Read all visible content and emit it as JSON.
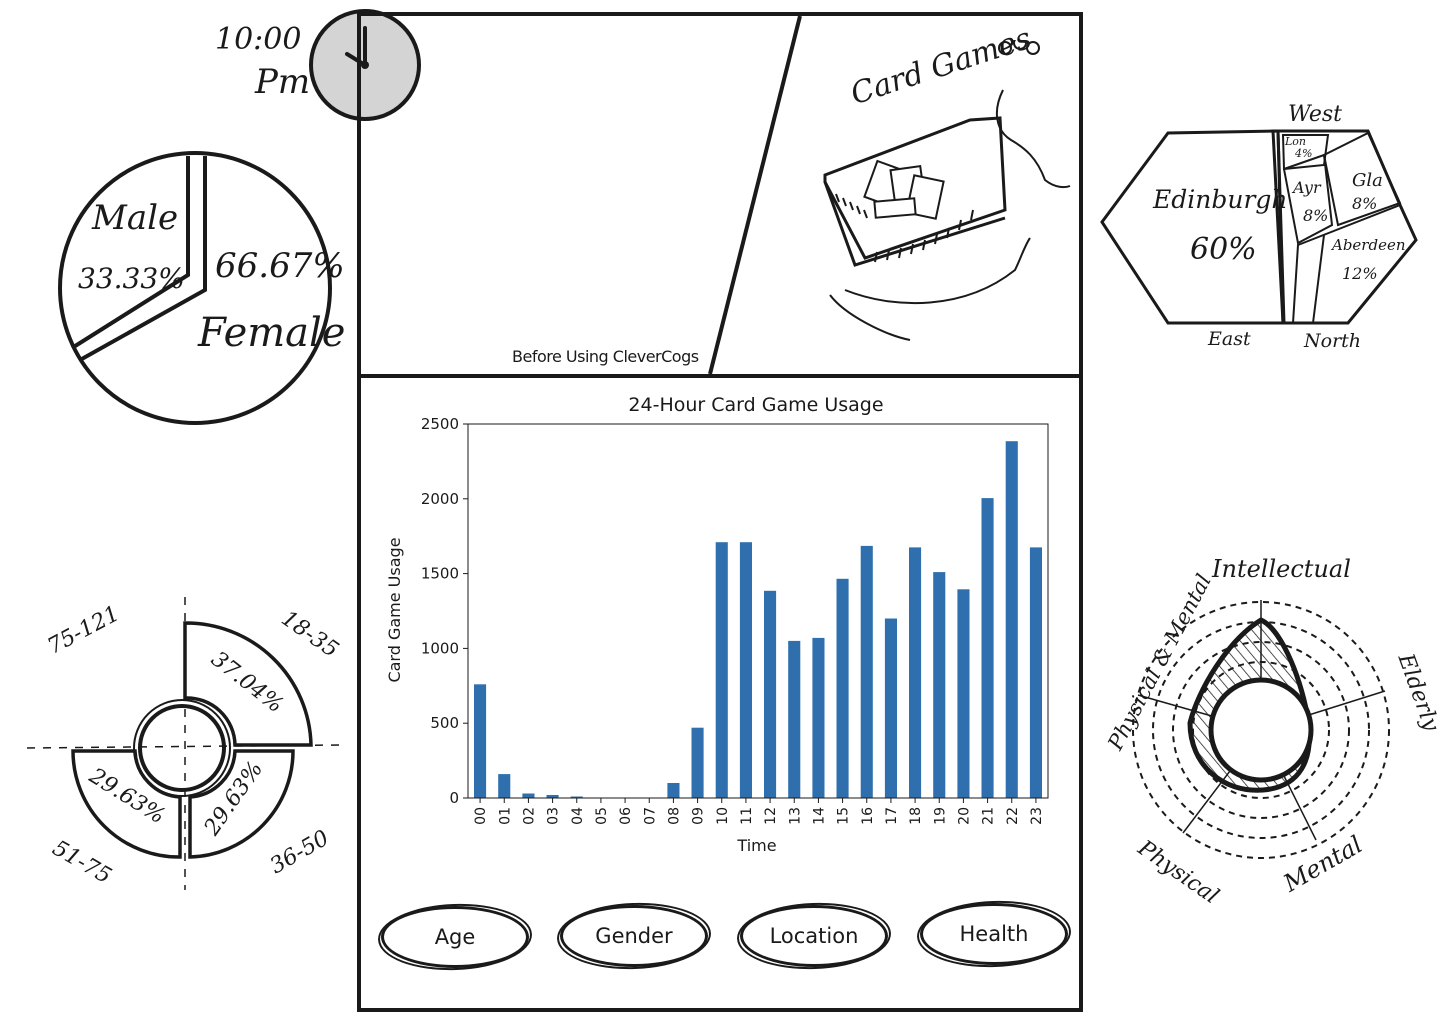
{
  "clock": {
    "time_label": "10:00",
    "ampm_label": "Pm"
  },
  "gender_pie": {
    "male_label": "Male",
    "male_pct": "33.33%",
    "female_label": "Female",
    "female_pct": "66.67%"
  },
  "hero_panel": {
    "before_caption": "Before Using CleverCogs",
    "card_games_label": "Card Games"
  },
  "location_map": {
    "west_label": "West",
    "east_label": "East",
    "north_label": "North",
    "edinburgh_label": "Edinburgh",
    "edinburgh_pct": "60%",
    "lon_label": "Lon",
    "lon_pct": "4%",
    "ayr_label": "Ayr",
    "ayr_pct": "8%",
    "gla_label": "Gla",
    "gla_pct": "8%",
    "aberdeen_label": "Aberdeen",
    "aberdeen_pct": "12%"
  },
  "age_ring": {
    "seg_18_35_label": "18-35",
    "seg_18_35_pct": "37.04%",
    "seg_36_50_label": "36-50",
    "seg_36_50_pct": "29.63%",
    "seg_51_75_label": "51-75",
    "seg_51_75_pct": "29.63%",
    "seg_75_121_label": "75-121"
  },
  "health_radar": {
    "intellectual_label": "Intellectual",
    "elderly_label": "Elderly",
    "mental_label": "Mental",
    "physical_label": "Physical",
    "physical_mental_label": "Physical & Mental"
  },
  "filters": {
    "age_label": "Age",
    "gender_label": "Gender",
    "location_label": "Location",
    "health_label": "Health"
  },
  "chart_data": {
    "type": "bar",
    "title": "24-Hour Card Game Usage",
    "xlabel": "Time",
    "ylabel": "Card Game Usage",
    "categories": [
      "00",
      "01",
      "02",
      "03",
      "04",
      "05",
      "06",
      "07",
      "08",
      "09",
      "10",
      "11",
      "12",
      "13",
      "14",
      "15",
      "16",
      "17",
      "18",
      "19",
      "20",
      "21",
      "22",
      "23"
    ],
    "values": [
      760,
      160,
      30,
      20,
      10,
      0,
      0,
      0,
      100,
      470,
      1710,
      1710,
      1385,
      1050,
      1070,
      1465,
      1685,
      1200,
      1675,
      1510,
      1395,
      2005,
      2385,
      1675
    ],
    "ylim": [
      0,
      2500
    ],
    "yticks": [
      0,
      500,
      1000,
      1500,
      2000,
      2500
    ],
    "bar_color": "#2f6fad",
    "grid": false,
    "legend": "none"
  }
}
